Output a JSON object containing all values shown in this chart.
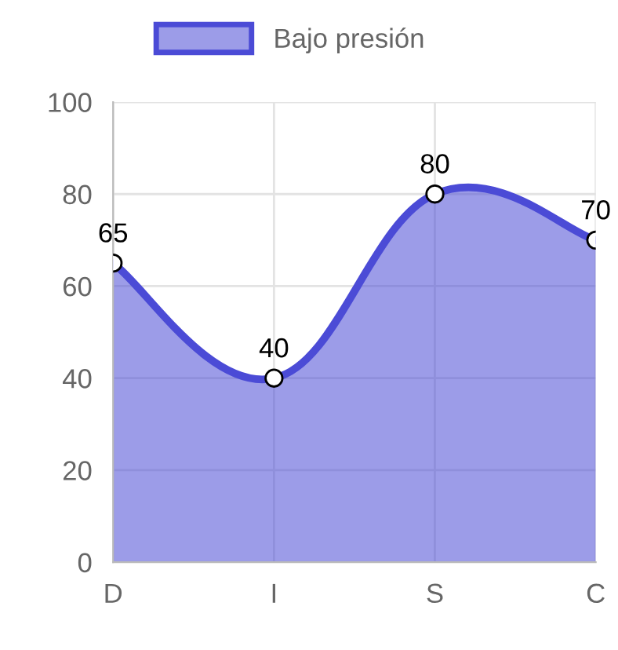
{
  "chart_data": {
    "type": "area",
    "categories": [
      "D",
      "I",
      "S",
      "C"
    ],
    "series": [
      {
        "name": "Bajo presión",
        "color": "#4b4bd6",
        "values": [
          65,
          40,
          80,
          70
        ]
      }
    ],
    "ylim": [
      0,
      100
    ],
    "yticks": [
      0,
      20,
      40,
      60,
      80,
      100
    ],
    "grid": true,
    "legend": "top",
    "marker": "circle",
    "data_labels": true
  }
}
